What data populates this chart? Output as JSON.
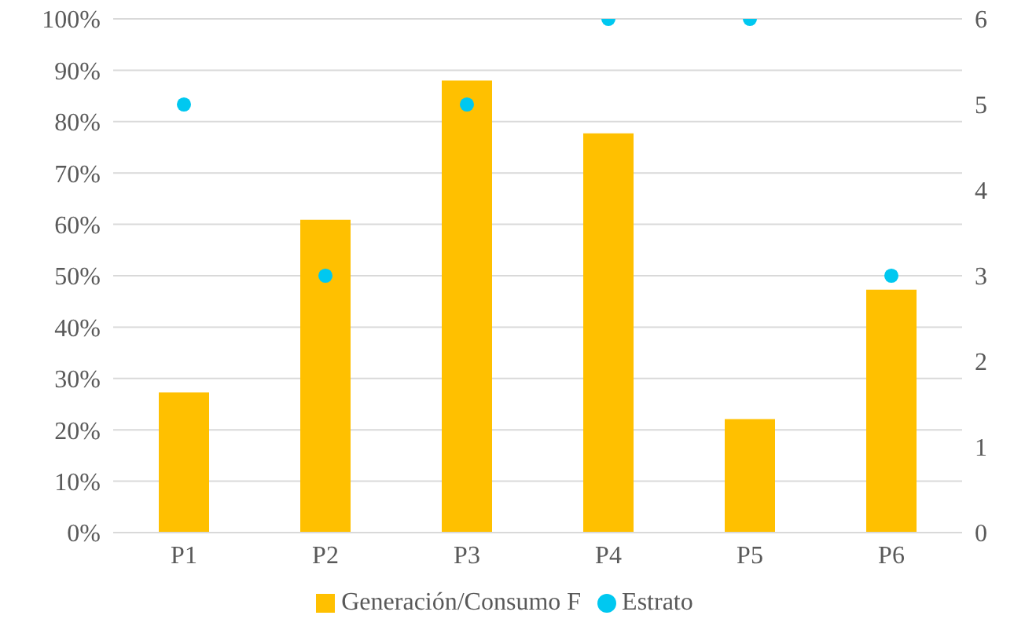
{
  "chart_data": {
    "type": "bar",
    "categories": [
      "P1",
      "P2",
      "P3",
      "P4",
      "P5",
      "P6"
    ],
    "series": [
      {
        "name": "Generación/Consumo F",
        "color": "#ffc000",
        "values": [
          27.3,
          60.9,
          88,
          77.7,
          22.1,
          47.3
        ]
      },
      {
        "name": "Estrato",
        "type": "scatter",
        "axis": "y2",
        "color": "#00c8f0",
        "values": [
          5,
          3,
          5,
          6,
          6,
          3
        ]
      }
    ],
    "ylim": [
      0,
      100
    ],
    "yticks": [
      {
        "value": 0,
        "label": "0%"
      },
      {
        "value": 10,
        "label": "10%"
      },
      {
        "value": 20,
        "label": "20%"
      },
      {
        "value": 30,
        "label": "30%"
      },
      {
        "value": 40,
        "label": "40%"
      },
      {
        "value": 50,
        "label": "50%"
      },
      {
        "value": 60,
        "label": "60%"
      },
      {
        "value": 70,
        "label": "70%"
      },
      {
        "value": 80,
        "label": "80%"
      },
      {
        "value": 90,
        "label": "90%"
      },
      {
        "value": 100,
        "label": "100%"
      }
    ],
    "y2lim": [
      0,
      6
    ],
    "y2ticks": [
      0,
      1,
      2,
      3,
      4,
      5,
      6
    ],
    "grid": "y",
    "legend": "bottom",
    "marker": "circle"
  }
}
